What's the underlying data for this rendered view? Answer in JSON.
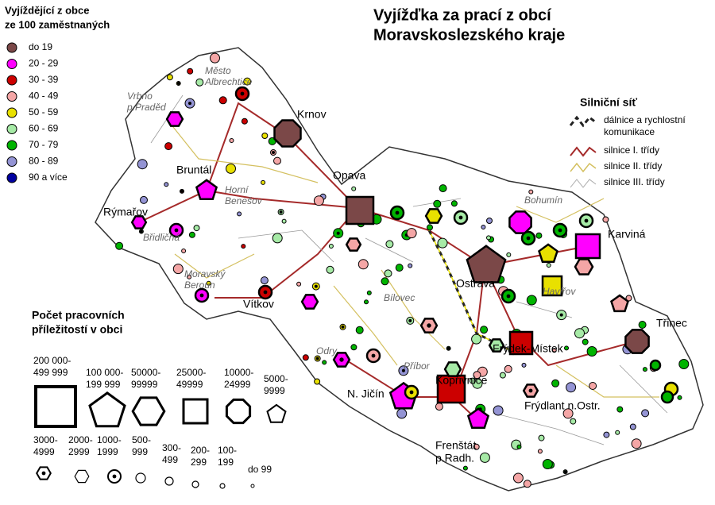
{
  "title": [
    "Vyjížďka za prací z obcí",
    "Moravskoslezského kraje"
  ],
  "commuter_legend": {
    "title": [
      "Vyjíždějící z obce",
      "ze 100 zaměstnaných"
    ],
    "items": [
      {
        "label": "do 19",
        "color": "#7b4848"
      },
      {
        "label": "20 - 29",
        "color": "#ff00ff"
      },
      {
        "label": "30 - 39",
        "color": "#cc0000"
      },
      {
        "label": "40 - 49",
        "color": "#f4a6a6"
      },
      {
        "label": "50 - 59",
        "color": "#e8e000"
      },
      {
        "label": "60 - 69",
        "color": "#a6eaa6"
      },
      {
        "label": "70 - 79",
        "color": "#00b400"
      },
      {
        "label": "80 - 89",
        "color": "#9494d4"
      },
      {
        "label": "90 a více",
        "color": "#0000a0"
      }
    ]
  },
  "road_legend": {
    "title": "Silniční síť",
    "items": [
      "dálnice a rychlostní komunikace",
      "silnice I. třídy",
      "silnice II. třídy",
      "silnice III. třídy"
    ]
  },
  "size_legend": {
    "title": [
      "Počet pracovních",
      "příležitostí v obci"
    ],
    "items": [
      {
        "label": [
          "200 000-",
          "499 999"
        ],
        "shape": "square"
      },
      {
        "label": [
          "100 000-",
          "199 999"
        ],
        "shape": "pentagon"
      },
      {
        "label": [
          "50000-",
          "99999"
        ],
        "shape": "hexagon"
      },
      {
        "label": [
          "25000-",
          "49999"
        ],
        "shape": "square"
      },
      {
        "label": [
          "10000-",
          "24999"
        ],
        "shape": "octagon"
      },
      {
        "label": [
          "5000-",
          "9999"
        ],
        "shape": "pentagon"
      },
      {
        "label": [
          "3000-",
          "4999"
        ],
        "shape": "hexagon-dot"
      },
      {
        "label": [
          "2000-",
          "2999"
        ],
        "shape": "hexagon"
      },
      {
        "label": [
          "1000-",
          "1999"
        ],
        "shape": "circle-dot"
      },
      {
        "label": [
          "500-",
          "999"
        ],
        "shape": "circle"
      },
      {
        "label": [
          "300-",
          "499"
        ],
        "shape": "circle"
      },
      {
        "label": [
          "200-",
          "299"
        ],
        "shape": "circle"
      },
      {
        "label": [
          "100-",
          "199"
        ],
        "shape": "circle"
      },
      {
        "label": [
          "do 99"
        ],
        "shape": "circle"
      }
    ]
  },
  "towns": [
    "Krnov",
    "Bruntál",
    "Opava",
    "Rýmařov",
    "Vítkov",
    "Karviná",
    "Ostrava",
    "Třinec",
    "Frýdek-Místek",
    "Kopřivnice",
    "N. Jičín",
    "Frýdlant n.Ostr.",
    "Frenštát",
    "p.Radh."
  ],
  "places": [
    [
      "Město",
      "Albrechtice"
    ],
    [
      "Vrbno",
      "p.Praděd"
    ],
    [
      "Horní",
      "Benešov"
    ],
    [
      "Břidličná"
    ],
    [
      "Moravský",
      "Beroun"
    ],
    [
      "Bohumín"
    ],
    [
      "Havířov"
    ],
    [
      "Bílovec"
    ],
    [
      "Odry"
    ],
    [
      "Příbor"
    ]
  ]
}
